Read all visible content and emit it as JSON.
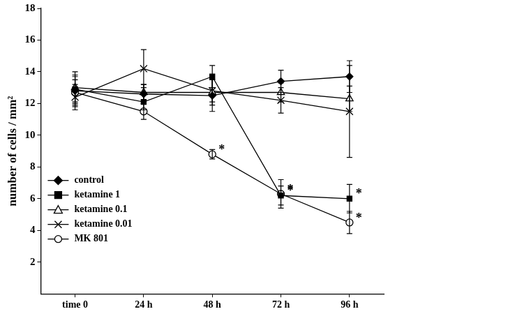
{
  "chart_data": {
    "type": "line",
    "categories": [
      "time 0",
      "24 h",
      "48 h",
      "72 h",
      "96 h"
    ],
    "ylabel": "number of cells / mm²",
    "ylim": [
      0,
      18
    ],
    "yticks": [
      2,
      4,
      6,
      8,
      10,
      12,
      14,
      16,
      18
    ],
    "grid": false,
    "legend": "lower left",
    "series": [
      {
        "name": "control",
        "color": "#000000",
        "marker": "diamond",
        "values": [
          12.8,
          12.6,
          12.5,
          13.4,
          13.7
        ],
        "errors": [
          1.0,
          0.6,
          1.0,
          0.7,
          1.0
        ],
        "significance": [
          null,
          null,
          null,
          null,
          null
        ]
      },
      {
        "name": "ketamine 1",
        "color": "#000000",
        "marker": "square",
        "values": [
          12.9,
          12.1,
          13.7,
          6.2,
          6.0
        ],
        "errors": [
          0.8,
          0.5,
          0.7,
          0.6,
          0.9
        ],
        "significance": [
          null,
          null,
          null,
          "*",
          "*"
        ]
      },
      {
        "name": "ketamine 0.1",
        "color": "#000000",
        "marker": "open triangle",
        "values": [
          13.0,
          12.7,
          12.7,
          12.7,
          12.3
        ],
        "errors": [
          1.0,
          0.5,
          0.8,
          0.6,
          0.8
        ],
        "significance": [
          null,
          null,
          null,
          null,
          null
        ]
      },
      {
        "name": "ketamine 0.01",
        "color": "#000000",
        "marker": "x",
        "values": [
          12.4,
          14.2,
          12.8,
          12.2,
          11.5
        ],
        "errors": [
          0.8,
          1.2,
          0.7,
          0.8,
          2.9
        ],
        "significance": [
          null,
          null,
          null,
          null,
          null
        ]
      },
      {
        "name": "MK 801",
        "color": "#000000",
        "marker": "open circle",
        "values": [
          12.7,
          11.5,
          8.8,
          6.3,
          4.5
        ],
        "errors": [
          0.8,
          0.5,
          0.3,
          0.9,
          0.7
        ],
        "significance": [
          null,
          null,
          "*",
          "*",
          "*"
        ]
      }
    ]
  }
}
